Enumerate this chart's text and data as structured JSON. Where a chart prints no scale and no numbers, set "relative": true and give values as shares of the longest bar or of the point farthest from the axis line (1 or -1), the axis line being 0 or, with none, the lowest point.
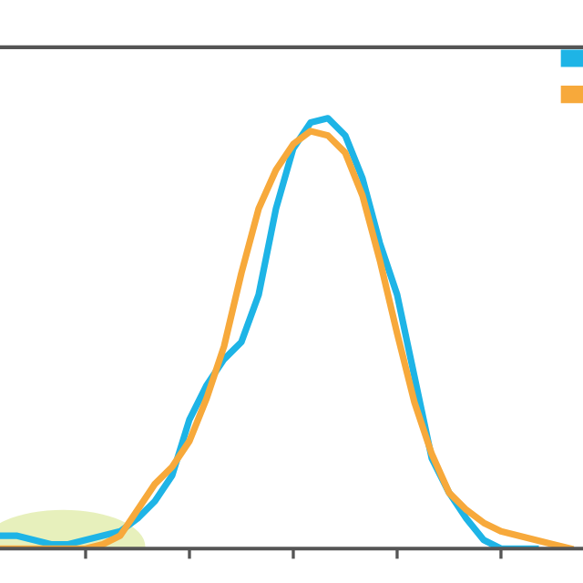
{
  "chart_data": {
    "type": "line",
    "relative": true,
    "grid": false,
    "marker": "none",
    "line_style": "solid",
    "categories": [
      null,
      null,
      null,
      null,
      null,
      null,
      null,
      null,
      null,
      null,
      null,
      null,
      null,
      null,
      null,
      null,
      null,
      null,
      null,
      null,
      null,
      null,
      null,
      null,
      null,
      null,
      null,
      null,
      null,
      null,
      null,
      null,
      null,
      null
    ],
    "series": [
      {
        "color": "#1eb4e6",
        "values": [
          0.03,
          0.03,
          0.02,
          0.01,
          0.01,
          0.02,
          0.03,
          0.04,
          0.07,
          0.11,
          0.17,
          0.3,
          0.38,
          0.44,
          0.48,
          0.59,
          0.79,
          0.93,
          0.99,
          1.0,
          0.96,
          0.86,
          0.71,
          0.59,
          0.4,
          0.21,
          0.13,
          0.07,
          0.02,
          0.0,
          0.0,
          0.0,
          null,
          null
        ]
      },
      {
        "color": "#f7a93b",
        "values": [
          0.0,
          0.0,
          0.0,
          0.0,
          0.0,
          0.0,
          0.01,
          0.03,
          0.09,
          0.15,
          0.19,
          0.25,
          0.35,
          0.47,
          0.64,
          0.79,
          0.88,
          0.94,
          0.97,
          0.96,
          0.92,
          0.82,
          0.67,
          0.5,
          0.34,
          0.22,
          0.13,
          0.09,
          0.06,
          0.04,
          0.03,
          0.02,
          0.01,
          0.0
        ]
      }
    ]
  }
}
